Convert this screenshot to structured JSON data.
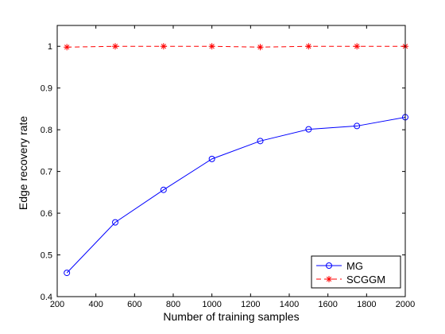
{
  "chart_data": {
    "type": "line",
    "title": "",
    "xlabel": "Number of training samples",
    "ylabel": "Edge recovery rate",
    "xlim": [
      200,
      2000
    ],
    "ylim": [
      0.4,
      1.05
    ],
    "xticks": [
      200,
      400,
      600,
      800,
      1000,
      1200,
      1400,
      1600,
      1800,
      2000
    ],
    "yticks": [
      0.4,
      0.5,
      0.6,
      0.7,
      0.8,
      0.9,
      1
    ],
    "x": [
      250,
      500,
      750,
      1000,
      1250,
      1500,
      1750,
      2000
    ],
    "series": [
      {
        "name": "MG",
        "color": "#0000ff",
        "marker": "circle",
        "line_style": "solid",
        "values": [
          0.457,
          0.578,
          0.656,
          0.73,
          0.773,
          0.801,
          0.809,
          0.83
        ]
      },
      {
        "name": "SCGGM",
        "color": "#ff0000",
        "marker": "star",
        "line_style": "dashed",
        "values": [
          0.998,
          1.0,
          1.0,
          1.0,
          0.998,
          1.0,
          1.0,
          1.0
        ]
      }
    ],
    "legend_position": "bottom-right",
    "grid": false
  }
}
